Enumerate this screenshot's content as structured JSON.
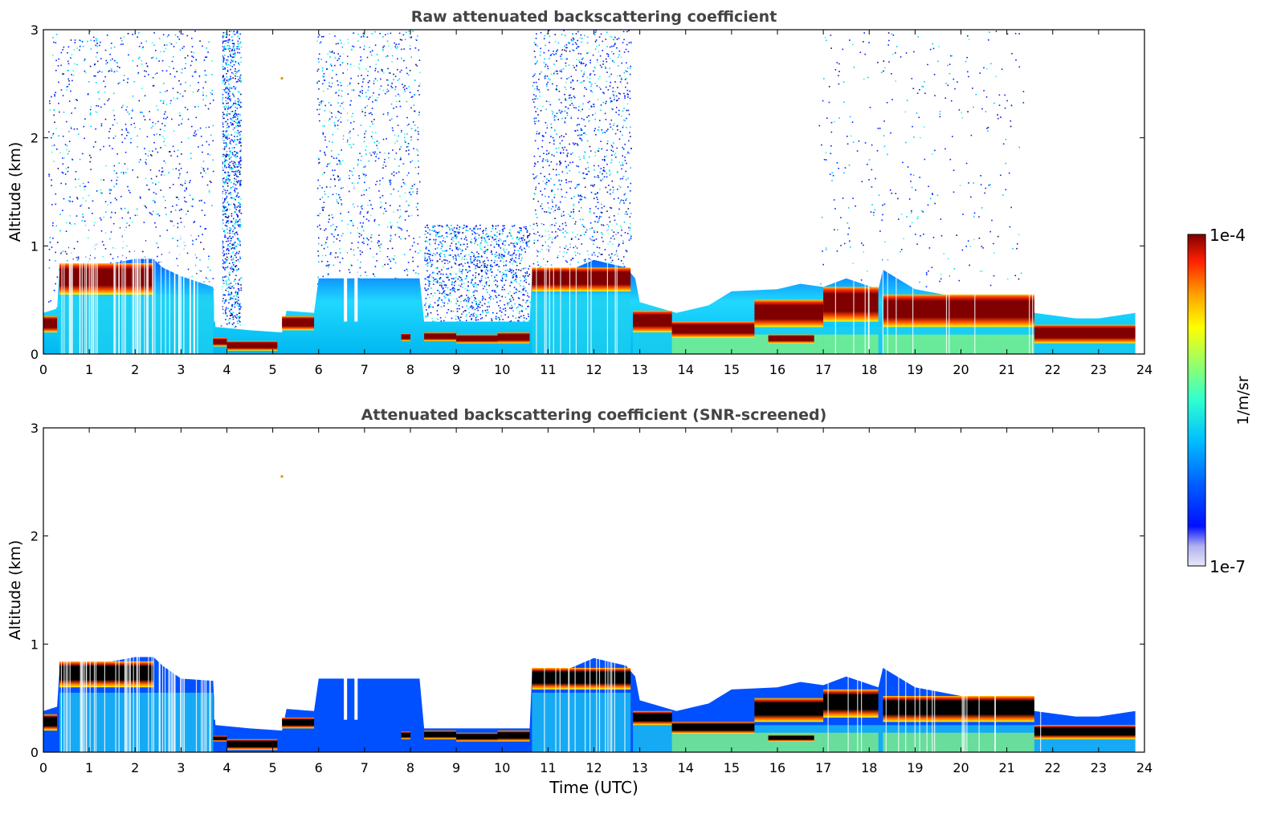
{
  "colors": {
    "background": "#ffffff",
    "title_text": "#444444",
    "axis": "#000000",
    "layer_core": "#800000",
    "screened_core": "#000000",
    "colormap": [
      "#e8e8f8",
      "#b0b0f0",
      "#0010ff",
      "#0060ff",
      "#00c0ff",
      "#30ffd0",
      "#a0ff60",
      "#ffff00",
      "#ffa000",
      "#ff2000",
      "#800000"
    ]
  },
  "colorbar": {
    "label": "1/m/sr",
    "top_label": "1e-4",
    "bottom_label": "1e-7",
    "scale": "log",
    "range": [
      1e-07,
      0.0001
    ]
  },
  "chart_data": [
    {
      "type": "heatmap",
      "title": "Raw attenuated backscattering coefficient",
      "xlabel": "",
      "ylabel": "Altitude (km)",
      "xlim": [
        0,
        24
      ],
      "ylim": [
        0,
        3
      ],
      "x_ticks": [
        "0",
        "1",
        "2",
        "3",
        "4",
        "5",
        "6",
        "7",
        "8",
        "9",
        "10",
        "11",
        "12",
        "13",
        "14",
        "15",
        "16",
        "17",
        "18",
        "19",
        "20",
        "21",
        "22",
        "23",
        "24"
      ],
      "y_ticks": [
        "0",
        "1",
        "2",
        "3"
      ],
      "grid": false,
      "screened": false,
      "layer_top_km": [
        [
          0.0,
          0.38
        ],
        [
          0.3,
          0.42
        ],
        [
          0.35,
          0.75
        ],
        [
          1.0,
          0.77
        ],
        [
          1.5,
          0.84
        ],
        [
          2.0,
          0.88
        ],
        [
          2.4,
          0.88
        ],
        [
          2.6,
          0.8
        ],
        [
          3.0,
          0.72
        ],
        [
          3.7,
          0.62
        ],
        [
          3.75,
          0.25
        ],
        [
          4.5,
          0.22
        ],
        [
          5.2,
          0.2
        ],
        [
          5.3,
          0.4
        ],
        [
          5.9,
          0.38
        ],
        [
          6.0,
          0.7
        ],
        [
          8.2,
          0.7
        ],
        [
          8.3,
          0.3
        ],
        [
          10.6,
          0.3
        ],
        [
          10.65,
          0.72
        ],
        [
          11.5,
          0.78
        ],
        [
          12.0,
          0.87
        ],
        [
          12.7,
          0.8
        ],
        [
          12.9,
          0.7
        ],
        [
          13.0,
          0.48
        ],
        [
          13.8,
          0.38
        ],
        [
          14.5,
          0.45
        ],
        [
          15.0,
          0.58
        ],
        [
          16.0,
          0.6
        ],
        [
          16.5,
          0.65
        ],
        [
          17.0,
          0.62
        ],
        [
          17.5,
          0.7
        ],
        [
          18.2,
          0.6
        ],
        [
          18.3,
          0.78
        ],
        [
          19.0,
          0.6
        ],
        [
          20.0,
          0.52
        ],
        [
          21.5,
          0.5
        ],
        [
          21.6,
          0.38
        ],
        [
          22.5,
          0.33
        ],
        [
          23.0,
          0.33
        ],
        [
          23.8,
          0.38
        ]
      ],
      "core_layer_km": [
        [
          0.0,
          0.3,
          0.2,
          0.35
        ],
        [
          0.35,
          2.4,
          0.55,
          0.84
        ],
        [
          3.7,
          4.0,
          0.07,
          0.15
        ],
        [
          4.0,
          5.1,
          0.03,
          0.12
        ],
        [
          5.2,
          5.9,
          0.22,
          0.35
        ],
        [
          7.8,
          8.0,
          0.12,
          0.19
        ],
        [
          8.3,
          9.0,
          0.12,
          0.2
        ],
        [
          9.0,
          9.9,
          0.1,
          0.18
        ],
        [
          9.9,
          10.6,
          0.1,
          0.2
        ],
        [
          10.65,
          12.8,
          0.58,
          0.8
        ],
        [
          12.85,
          13.7,
          0.2,
          0.4
        ],
        [
          13.7,
          15.5,
          0.15,
          0.3
        ],
        [
          15.5,
          17.0,
          0.25,
          0.5
        ],
        [
          15.8,
          16.8,
          0.1,
          0.18
        ],
        [
          17.0,
          18.2,
          0.3,
          0.62
        ],
        [
          18.3,
          21.6,
          0.25,
          0.55
        ],
        [
          21.6,
          23.8,
          0.1,
          0.27
        ]
      ],
      "noise_band_km": [
        [
          0.1,
          3.7,
          0.0,
          3.0
        ],
        [
          3.85,
          4.3,
          0.25,
          3.0
        ],
        [
          5.95,
          8.2,
          0.0,
          3.0
        ],
        [
          8.3,
          10.6,
          0.3,
          1.2
        ],
        [
          10.65,
          12.8,
          0.8,
          3.0
        ],
        [
          16.9,
          21.4,
          0.6,
          3.0
        ]
      ],
      "isolated_points": [
        [
          5.2,
          2.55,
          "#e69500"
        ]
      ]
    },
    {
      "type": "heatmap",
      "title": "Attenuated backscattering coefficient (SNR-screened)",
      "xlabel": "Time (UTC)",
      "ylabel": "Altitude (km)",
      "xlim": [
        0,
        24
      ],
      "ylim": [
        0,
        3
      ],
      "x_ticks": [
        "0",
        "1",
        "2",
        "3",
        "4",
        "5",
        "6",
        "7",
        "8",
        "9",
        "10",
        "11",
        "12",
        "13",
        "14",
        "15",
        "16",
        "17",
        "18",
        "19",
        "20",
        "21",
        "22",
        "23",
        "24"
      ],
      "y_ticks": [
        "0",
        "1",
        "2",
        "3"
      ],
      "grid": false,
      "screened": true,
      "layer_top_km": [
        [
          0.0,
          0.38
        ],
        [
          0.3,
          0.42
        ],
        [
          0.35,
          0.75
        ],
        [
          1.0,
          0.77
        ],
        [
          1.5,
          0.84
        ],
        [
          2.0,
          0.88
        ],
        [
          2.4,
          0.88
        ],
        [
          2.6,
          0.8
        ],
        [
          3.0,
          0.68
        ],
        [
          3.7,
          0.66
        ],
        [
          3.75,
          0.25
        ],
        [
          4.5,
          0.22
        ],
        [
          5.2,
          0.2
        ],
        [
          5.3,
          0.4
        ],
        [
          5.9,
          0.38
        ],
        [
          6.0,
          0.68
        ],
        [
          8.2,
          0.68
        ],
        [
          8.3,
          0.22
        ],
        [
          10.6,
          0.22
        ],
        [
          10.65,
          0.72
        ],
        [
          11.5,
          0.78
        ],
        [
          12.0,
          0.87
        ],
        [
          12.7,
          0.8
        ],
        [
          12.9,
          0.7
        ],
        [
          13.0,
          0.48
        ],
        [
          13.8,
          0.38
        ],
        [
          14.5,
          0.45
        ],
        [
          15.0,
          0.58
        ],
        [
          16.0,
          0.6
        ],
        [
          16.5,
          0.65
        ],
        [
          17.0,
          0.62
        ],
        [
          17.5,
          0.7
        ],
        [
          18.2,
          0.6
        ],
        [
          18.3,
          0.78
        ],
        [
          19.0,
          0.6
        ],
        [
          20.0,
          0.52
        ],
        [
          21.5,
          0.5
        ],
        [
          21.6,
          0.38
        ],
        [
          22.5,
          0.33
        ],
        [
          23.0,
          0.33
        ],
        [
          23.8,
          0.38
        ]
      ],
      "core_layer_km": [
        [
          0.0,
          0.3,
          0.2,
          0.35
        ],
        [
          0.35,
          2.4,
          0.6,
          0.84
        ],
        [
          3.7,
          4.0,
          0.1,
          0.15
        ],
        [
          4.0,
          5.1,
          0.02,
          0.12
        ],
        [
          5.2,
          5.9,
          0.22,
          0.32
        ],
        [
          7.8,
          8.0,
          0.12,
          0.19
        ],
        [
          8.3,
          9.0,
          0.12,
          0.2
        ],
        [
          9.0,
          9.9,
          0.1,
          0.18
        ],
        [
          9.9,
          10.6,
          0.1,
          0.2
        ],
        [
          10.65,
          12.8,
          0.58,
          0.78
        ],
        [
          12.85,
          13.7,
          0.25,
          0.38
        ],
        [
          13.7,
          15.5,
          0.17,
          0.28
        ],
        [
          15.5,
          17.0,
          0.28,
          0.5
        ],
        [
          15.8,
          16.8,
          0.1,
          0.16
        ],
        [
          17.0,
          18.2,
          0.32,
          0.58
        ],
        [
          18.3,
          21.6,
          0.28,
          0.52
        ],
        [
          21.6,
          23.8,
          0.12,
          0.25
        ]
      ],
      "noise_band_km": [],
      "isolated_points": [
        [
          5.2,
          2.55,
          "#e69500"
        ]
      ]
    }
  ]
}
